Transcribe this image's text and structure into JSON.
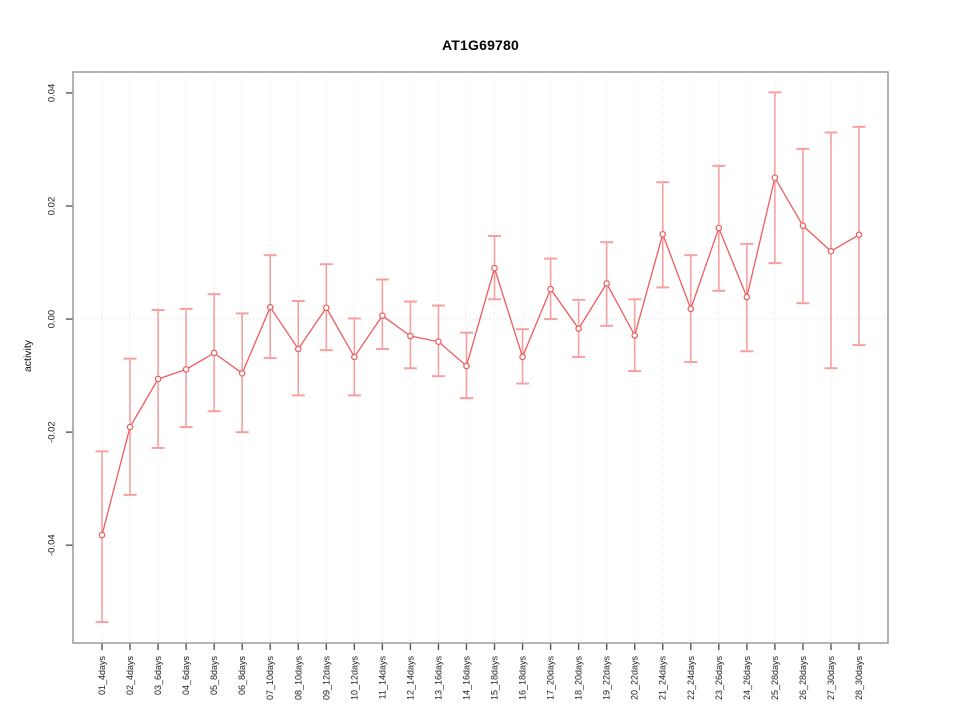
{
  "window": {
    "background": "#ffffff"
  },
  "chart_data": {
    "type": "line",
    "title": "AT1G69780",
    "xlabel": "",
    "ylabel": "activity",
    "ylim": [
      -0.0573,
      0.0437
    ],
    "yticks": [
      0.04,
      0.02,
      0.0,
      -0.02,
      -0.04
    ],
    "ytick_labels": [
      "0.04",
      "0.02",
      "0.00",
      "-0.02",
      "-0.04"
    ],
    "grid": {
      "vertical_dotted_per_category": true,
      "horizontal_dotted_zero_line": true
    },
    "legend_position": "none",
    "marker": "open-circle",
    "categories": [
      "01_4days",
      "02_4days",
      "03_6days",
      "04_6days",
      "05_8days",
      "06_8days",
      "07_10days",
      "08_10days",
      "09_12days",
      "10_12days",
      "11_14days",
      "12_14days",
      "13_16days",
      "14_16days",
      "15_18days",
      "16_18days",
      "17_20days",
      "18_20days",
      "19_22days",
      "20_22days",
      "21_24days",
      "22_24days",
      "23_26days",
      "24_26days",
      "25_28days",
      "26_28days",
      "27_30days",
      "28_30days"
    ],
    "series": [
      {
        "name": "activity",
        "values": [
          -0.0382,
          -0.0191,
          -0.0106,
          -0.0089,
          -0.006,
          -0.0096,
          0.0021,
          -0.0053,
          0.002,
          -0.0067,
          0.0006,
          -0.003,
          -0.004,
          -0.0083,
          0.009,
          -0.0067,
          0.0053,
          -0.0017,
          0.0063,
          -0.0029,
          0.015,
          0.0018,
          0.0161,
          0.0039,
          0.025,
          0.0165,
          0.012,
          0.0149
        ],
        "error_low": [
          -0.0536,
          -0.0311,
          -0.0228,
          -0.0191,
          -0.0163,
          -0.02,
          -0.0069,
          -0.0135,
          -0.0055,
          -0.0135,
          -0.0053,
          -0.0087,
          -0.0101,
          -0.014,
          0.0035,
          -0.0114,
          0.0,
          -0.0067,
          -0.0012,
          -0.0092,
          0.0056,
          -0.0076,
          0.005,
          -0.0057,
          0.0099,
          0.0028,
          -0.0087,
          -0.0046
        ],
        "error_high": [
          -0.0234,
          -0.007,
          0.0016,
          0.0018,
          0.0044,
          0.001,
          0.0113,
          0.0032,
          0.0097,
          0.0001,
          0.007,
          0.0031,
          0.0024,
          -0.0024,
          0.0147,
          -0.0018,
          0.0107,
          0.0034,
          0.0136,
          0.0035,
          0.0242,
          0.0113,
          0.0271,
          0.0133,
          0.0401,
          0.0301,
          0.033,
          0.034
        ]
      }
    ],
    "colors": {
      "line": "#ee5c5c",
      "marker_stroke": "#ee5c5c",
      "marker_fill": "#ffffff",
      "error_bar": "#f7a0a0",
      "frame": "#9a9a9a",
      "tick": "#555555",
      "tick_label": "#222222",
      "gridline": "#e3e3e3",
      "zero_line": "#d8d8d8",
      "title": "#000000"
    }
  }
}
